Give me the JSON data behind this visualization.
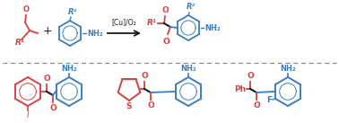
{
  "background_color": "#ffffff",
  "red_color": "#d94040",
  "blue_color": "#3a7cc4",
  "black_color": "#1a1a1a",
  "reaction_arrow_label": "[Cu]/O₂",
  "top": {
    "r1": "R¹",
    "r2": "R²",
    "nh2": "NH₂",
    "o": "O",
    "plus": "+"
  },
  "bottom": {
    "c1_i": "I",
    "c1_nh2": "NH₂",
    "c1_o1": "O",
    "c1_o2": "O",
    "c2_s": "S",
    "c2_nh2": "NH₂",
    "c2_o1": "O",
    "c2_o2": "O",
    "c3_ph": "Ph",
    "c3_f": "F",
    "c3_nh2": "NH₂",
    "c3_o1": "O",
    "c3_o2": "O"
  }
}
